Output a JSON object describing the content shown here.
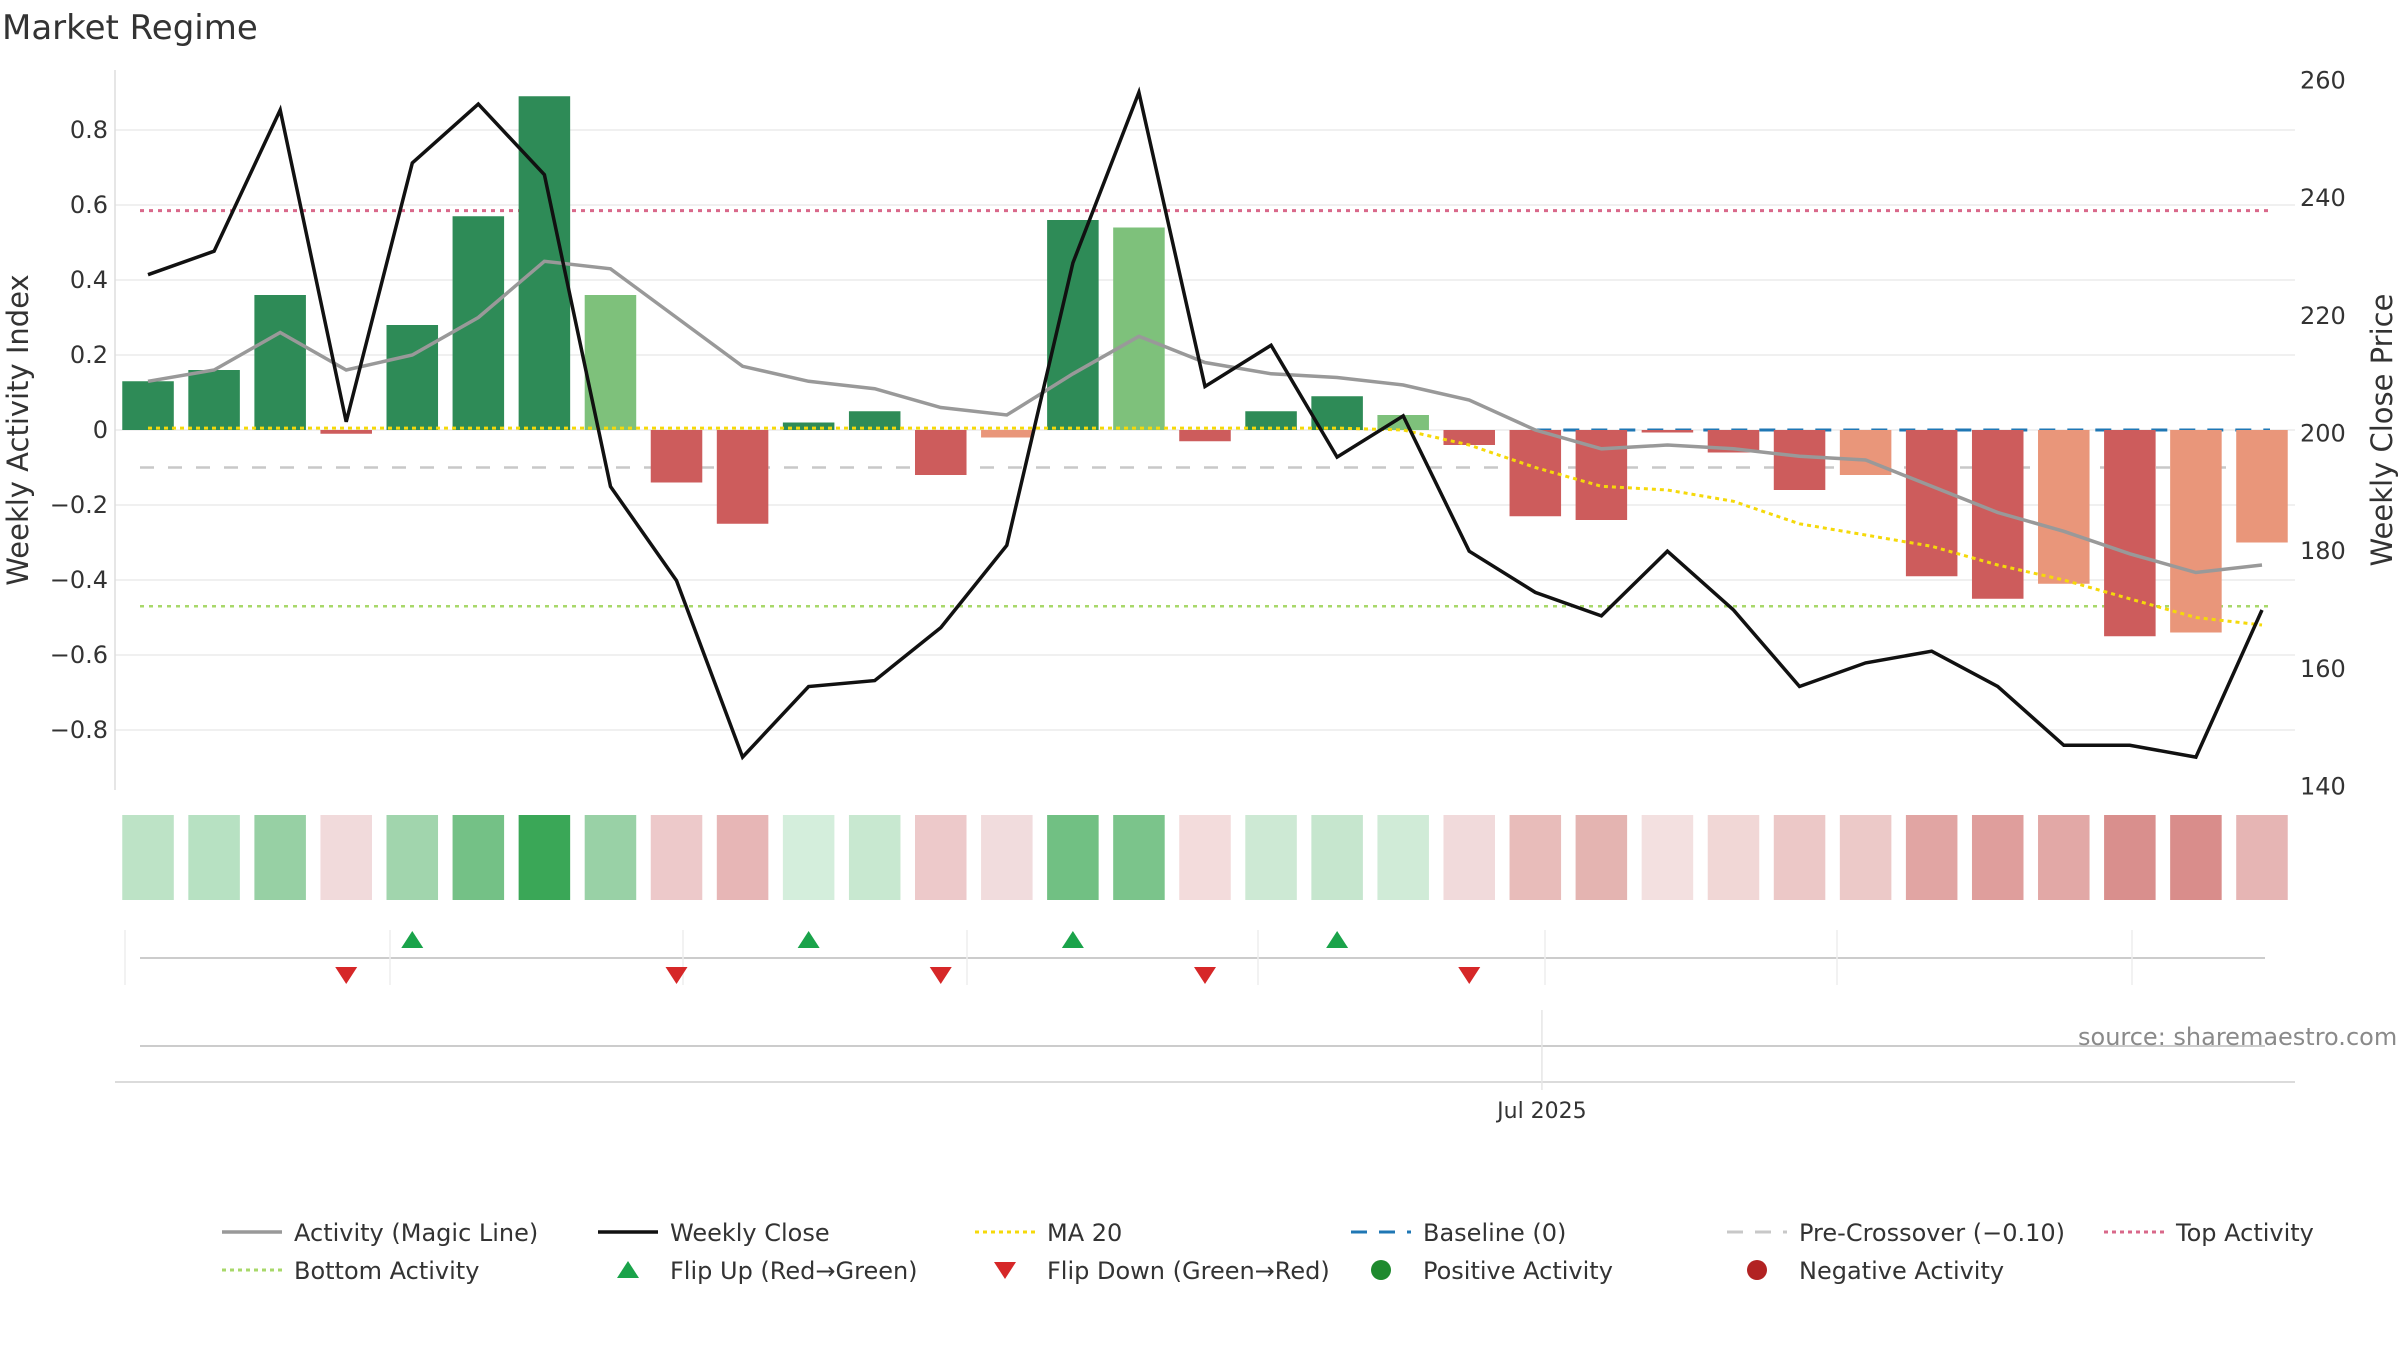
{
  "title": "Market Regime",
  "source": "source: sharemaestro.com",
  "colors": {
    "dark_green": "#2e8b57",
    "light_green": "#7ec17b",
    "red": "#cd5c5c",
    "salmon": "#e9967a",
    "magic_line": "#999999",
    "close_line": "#111111",
    "ma20": "#f5d90a",
    "baseline": "#1f77b4",
    "pre_crossover": "#c8c8c8",
    "top_activity": "#d9688a",
    "bottom_activity": "#a8d86a",
    "flip_up": "#1aa34a",
    "flip_down": "#d62728"
  },
  "chart_data": {
    "type": "bar",
    "ylabel": "Weekly Activity Index",
    "y2label": "Weekly Close Price",
    "ylim": [
      -0.96,
      0.96
    ],
    "y2lim": [
      140,
      260
    ],
    "y_ticks": [
      "0.8",
      "0.6",
      "0.4",
      "0.2",
      "0",
      "−0.2",
      "−0.4",
      "−0.6",
      "−0.8"
    ],
    "y2_ticks": [
      "260",
      "240",
      "220",
      "200",
      "180",
      "160",
      "140"
    ],
    "date_tick": "Jul 2025",
    "date_tick_index": 21.6,
    "series": [
      {
        "name": "Activity (Magic Line)",
        "type": "line",
        "values": [
          0.13,
          0.16,
          0.26,
          0.16,
          0.2,
          0.3,
          0.45,
          0.43,
          0.3,
          0.17,
          0.13,
          0.11,
          0.06,
          0.04,
          0.15,
          0.25,
          0.18,
          0.15,
          0.14,
          0.12,
          0.08,
          0.0,
          -0.05,
          -0.04,
          -0.05,
          -0.07,
          -0.08,
          -0.15,
          -0.22,
          -0.27,
          -0.33,
          -0.38,
          -0.36
        ]
      },
      {
        "name": "Weekly Close",
        "type": "line",
        "axis": "right",
        "values": [
          227,
          231,
          255,
          202,
          246,
          256,
          244,
          191,
          175,
          145,
          157,
          158,
          167,
          181,
          229,
          258,
          208,
          215,
          196,
          203,
          180,
          173,
          169,
          180,
          170,
          157,
          161,
          163,
          157,
          147,
          147,
          145,
          170
        ]
      },
      {
        "name": "MA 20",
        "type": "line",
        "values": [
          0.005,
          0.005,
          0.005,
          0.005,
          0.005,
          0.005,
          0.005,
          0.005,
          0.005,
          0.005,
          0.005,
          0.005,
          0.005,
          0.005,
          0.005,
          0.005,
          0.005,
          0.005,
          0.005,
          0.0,
          -0.04,
          -0.1,
          -0.15,
          -0.16,
          -0.19,
          -0.25,
          -0.28,
          -0.31,
          -0.36,
          -0.4,
          -0.45,
          -0.5,
          -0.52
        ]
      },
      {
        "name": "Baseline (0)",
        "type": "hline",
        "value": 0
      },
      {
        "name": "Pre-Crossover (−0.10)",
        "type": "hline",
        "value": -0.1
      },
      {
        "name": "Top Activity",
        "type": "hline",
        "value": 0.585
      },
      {
        "name": "Bottom Activity",
        "type": "hline",
        "value": -0.47
      }
    ],
    "bars": [
      {
        "value": 0.13,
        "color": "dark_green"
      },
      {
        "value": 0.16,
        "color": "dark_green"
      },
      {
        "value": 0.36,
        "color": "dark_green"
      },
      {
        "value": -0.01,
        "color": "red"
      },
      {
        "value": 0.28,
        "color": "dark_green"
      },
      {
        "value": 0.57,
        "color": "dark_green"
      },
      {
        "value": 0.89,
        "color": "dark_green"
      },
      {
        "value": 0.36,
        "color": "light_green"
      },
      {
        "value": -0.14,
        "color": "red"
      },
      {
        "value": -0.25,
        "color": "red"
      },
      {
        "value": 0.02,
        "color": "dark_green"
      },
      {
        "value": 0.05,
        "color": "dark_green"
      },
      {
        "value": -0.12,
        "color": "red"
      },
      {
        "value": -0.02,
        "color": "salmon"
      },
      {
        "value": 0.56,
        "color": "dark_green"
      },
      {
        "value": 0.54,
        "color": "light_green"
      },
      {
        "value": -0.03,
        "color": "red"
      },
      {
        "value": 0.05,
        "color": "dark_green"
      },
      {
        "value": 0.09,
        "color": "dark_green"
      },
      {
        "value": 0.04,
        "color": "light_green"
      },
      {
        "value": -0.04,
        "color": "red"
      },
      {
        "value": -0.23,
        "color": "red"
      },
      {
        "value": -0.24,
        "color": "red"
      },
      {
        "value": 0.0,
        "color": "red"
      },
      {
        "value": -0.06,
        "color": "red"
      },
      {
        "value": -0.16,
        "color": "red"
      },
      {
        "value": -0.12,
        "color": "salmon"
      },
      {
        "value": -0.39,
        "color": "red"
      },
      {
        "value": -0.45,
        "color": "red"
      },
      {
        "value": -0.41,
        "color": "salmon"
      },
      {
        "value": -0.55,
        "color": "red"
      },
      {
        "value": -0.54,
        "color": "salmon"
      },
      {
        "value": -0.3,
        "color": "salmon"
      }
    ],
    "heat_strip": [
      "#bde3c6",
      "#b7e1c2",
      "#97d0a4",
      "#f1dadb",
      "#a1d5ad",
      "#74c186",
      "#3aa757",
      "#99d1a6",
      "#edc9ca",
      "#e7b6b6",
      "#d4eedc",
      "#c8e8d0",
      "#edc9ca",
      "#f1dcdd",
      "#71c083",
      "#7bc48b",
      "#f3dcdc",
      "#cde9d4",
      "#c6e6ce",
      "#d0ebd7",
      "#f1dadb",
      "#e8bcba",
      "#e4b4b1",
      "#f3e0e0",
      "#f1d7d6",
      "#ecc8c7",
      "#ecc9c8",
      "#e1a5a3",
      "#df9e9c",
      "#e2a8a6",
      "#d98f8d",
      "#d98d8b",
      "#e6b5b4"
    ],
    "flip_up_indices": [
      4,
      10,
      14,
      18
    ],
    "flip_down_indices": [
      3,
      8,
      12,
      16,
      20
    ]
  },
  "legend": [
    {
      "label": "Activity (Magic Line)",
      "kind": "line",
      "color_key": "magic_line"
    },
    {
      "label": "Weekly Close",
      "kind": "line",
      "color_key": "close_line"
    },
    {
      "label": "MA 20",
      "kind": "dotted",
      "color_key": "ma20"
    },
    {
      "label": "Baseline (0)",
      "kind": "dashed",
      "color_key": "baseline"
    },
    {
      "label": "Pre-Crossover (−0.10)",
      "kind": "dashed",
      "color_key": "pre_crossover"
    },
    {
      "label": "Top Activity",
      "kind": "dotted",
      "color_key": "top_activity"
    },
    {
      "label": "Bottom Activity",
      "kind": "dotted",
      "color_key": "bottom_activity"
    },
    {
      "label": "Flip Up (Red→Green)",
      "kind": "triangle-up",
      "color_key": "flip_up"
    },
    {
      "label": "Flip Down (Green→Red)",
      "kind": "triangle-down",
      "color_key": "flip_down"
    },
    {
      "label": "Positive Activity",
      "kind": "circle",
      "color_key": "flip_up"
    },
    {
      "label": "Negative Activity",
      "kind": "circle",
      "color_key": "flip_down"
    }
  ]
}
